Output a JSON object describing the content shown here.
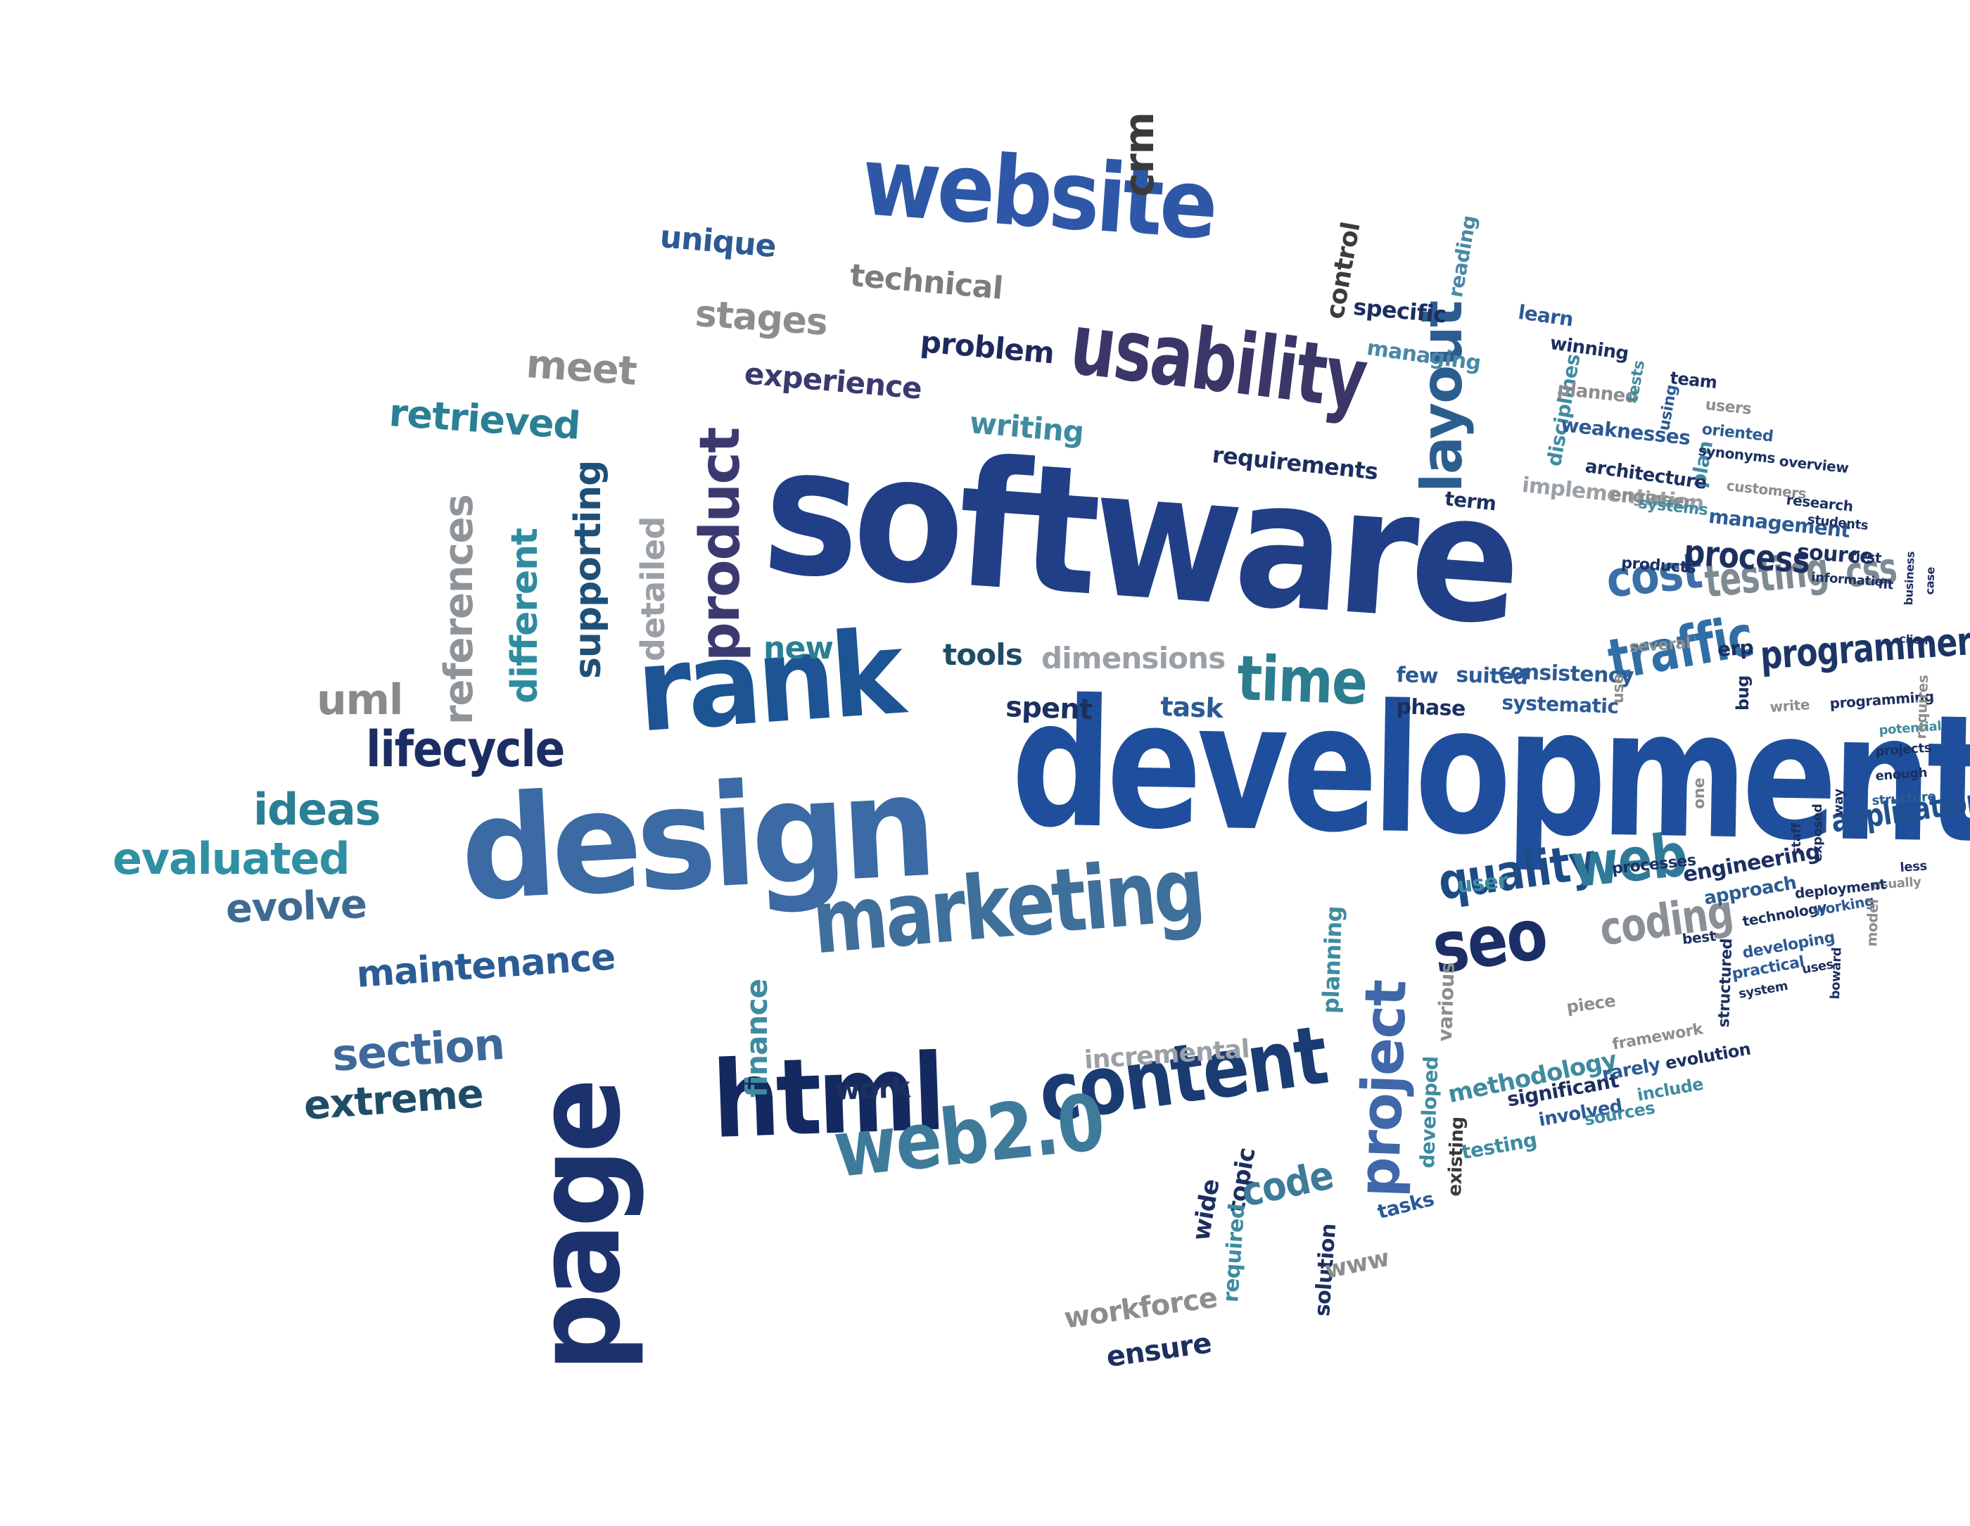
{
  "word_cloud": {
    "words": [
      {
        "text": "software",
        "color": "#213f86"
      },
      {
        "text": "development",
        "color": "#1f4f9c"
      },
      {
        "text": "design",
        "color": "#3b6aa5"
      },
      {
        "text": "rank",
        "color": "#1d5493"
      },
      {
        "text": "page",
        "color": "#1c326d"
      },
      {
        "text": "html",
        "color": "#14295f"
      },
      {
        "text": "content",
        "color": "#1a3c73"
      },
      {
        "text": "marketing",
        "color": "#3f6f9b"
      },
      {
        "text": "website",
        "color": "#2e58a7"
      },
      {
        "text": "usability",
        "color": "#3a3668"
      },
      {
        "text": "layout",
        "color": "#2b5e8f"
      },
      {
        "text": "product",
        "color": "#3b3a70"
      },
      {
        "text": "web2.0",
        "color": "#3e7a9a"
      },
      {
        "text": "project",
        "color": "#3f67a9"
      },
      {
        "text": "seo",
        "color": "#1b2f66"
      },
      {
        "text": "quality",
        "color": "#1d4b86"
      },
      {
        "text": "web",
        "color": "#2f7a98"
      },
      {
        "text": "time",
        "color": "#2b7d8f"
      },
      {
        "text": "traffic",
        "color": "#2f6fa5"
      },
      {
        "text": "cost",
        "color": "#3a6fa8"
      },
      {
        "text": "testing",
        "color": "#7f8b93"
      },
      {
        "text": "css",
        "color": "#7f8b93"
      },
      {
        "text": "programmer",
        "color": "#1c3566"
      },
      {
        "text": "application",
        "color": "#1f4f8f"
      },
      {
        "text": "coding",
        "color": "#8a9096"
      },
      {
        "text": "lifecycle",
        "color": "#1c2d63"
      },
      {
        "text": "ideas",
        "color": "#2a7f95"
      },
      {
        "text": "evaluated",
        "color": "#2f8fa3"
      },
      {
        "text": "evolve",
        "color": "#3e6a92"
      },
      {
        "text": "maintenance",
        "color": "#2c5c95"
      },
      {
        "text": "section",
        "color": "#3d6a9b"
      },
      {
        "text": "extreme",
        "color": "#1f4c66"
      },
      {
        "text": "uml",
        "color": "#8a8a8a"
      },
      {
        "text": "references",
        "color": "#8f9499"
      },
      {
        "text": "different",
        "color": "#2f8ca0"
      },
      {
        "text": "supporting",
        "color": "#1f5077"
      },
      {
        "text": "detailed",
        "color": "#9aa0a6"
      },
      {
        "text": "retrieved",
        "color": "#2a7f95"
      },
      {
        "text": "meet",
        "color": "#8d8d8d"
      },
      {
        "text": "stages",
        "color": "#8d8d8d"
      },
      {
        "text": "technical",
        "color": "#7d7d7d"
      },
      {
        "text": "unique",
        "color": "#2c5a95"
      },
      {
        "text": "experience",
        "color": "#3a3a70"
      },
      {
        "text": "problem",
        "color": "#1e2a5e"
      },
      {
        "text": "writing",
        "color": "#3f8ba0"
      },
      {
        "text": "crm",
        "color": "#3a3a3a"
      },
      {
        "text": "control",
        "color": "#3c3c3c"
      },
      {
        "text": "specific",
        "color": "#1c2f60"
      },
      {
        "text": "managing",
        "color": "#4a88a8"
      },
      {
        "text": "reading",
        "color": "#4a88a8"
      },
      {
        "text": "requirements",
        "color": "#1c2f60"
      },
      {
        "text": "term",
        "color": "#1c2f60"
      },
      {
        "text": "new",
        "color": "#2a7f95"
      },
      {
        "text": "tools",
        "color": "#1f4c66"
      },
      {
        "text": "dimensions",
        "color": "#9aa0a6"
      },
      {
        "text": "spent",
        "color": "#1c2f60"
      },
      {
        "text": "task",
        "color": "#2c5a95"
      },
      {
        "text": "finance",
        "color": "#3f8ba0"
      },
      {
        "text": "work",
        "color": "#1c2f60"
      },
      {
        "text": "incremental",
        "color": "#9aa0a6"
      },
      {
        "text": "planning",
        "color": "#3f8ba0"
      },
      {
        "text": "wide",
        "color": "#1c2f60"
      },
      {
        "text": "topic",
        "color": "#1c2f60"
      },
      {
        "text": "required",
        "color": "#3f8ba0"
      },
      {
        "text": "code",
        "color": "#3e7a9a"
      },
      {
        "text": "solution",
        "color": "#1c2f60"
      },
      {
        "text": "www",
        "color": "#8d8d8d"
      },
      {
        "text": "workforce",
        "color": "#8d8d8d"
      },
      {
        "text": "ensure",
        "color": "#1c2f60"
      },
      {
        "text": "tasks",
        "color": "#2c5a95"
      },
      {
        "text": "developed",
        "color": "#3f8ba0"
      },
      {
        "text": "various",
        "color": "#8d8d8d"
      },
      {
        "text": "existing",
        "color": "#3a3a3a"
      },
      {
        "text": "testing",
        "color": "#3f8ba0"
      },
      {
        "text": "involved",
        "color": "#2c5a95"
      },
      {
        "text": "methodology",
        "color": "#3f8ba0"
      },
      {
        "text": "significant",
        "color": "#1c2f60"
      },
      {
        "text": "rarely",
        "color": "#2c5a95"
      },
      {
        "text": "evolution",
        "color": "#1c2f60"
      },
      {
        "text": "include",
        "color": "#3f8ba0"
      },
      {
        "text": "sources",
        "color": "#3f8ba0"
      },
      {
        "text": "framework",
        "color": "#8d8d8d"
      },
      {
        "text": "piece",
        "color": "#8d8d8d"
      },
      {
        "text": "user",
        "color": "#3f8ba0"
      },
      {
        "text": "few",
        "color": "#2c5a95"
      },
      {
        "text": "suited",
        "color": "#2c5a95"
      },
      {
        "text": "phase",
        "color": "#1c2f60"
      },
      {
        "text": "consistency",
        "color": "#2c5a95"
      },
      {
        "text": "systematic",
        "color": "#2c5a95"
      },
      {
        "text": "use",
        "color": "#8d8d8d"
      },
      {
        "text": "several",
        "color": "#8d8d8d"
      },
      {
        "text": "erp",
        "color": "#1c2f60"
      },
      {
        "text": "bug",
        "color": "#1c2f60"
      },
      {
        "text": "write",
        "color": "#8d8d8d"
      },
      {
        "text": "programming",
        "color": "#1c2f60"
      },
      {
        "text": "potential",
        "color": "#3f8ba0"
      },
      {
        "text": "projects",
        "color": "#1c2f60"
      },
      {
        "text": "enough",
        "color": "#1c2f60"
      },
      {
        "text": "requires",
        "color": "#8d8d8d"
      },
      {
        "text": "structure",
        "color": "#2c5a95"
      },
      {
        "text": "one",
        "color": "#8d8d8d"
      },
      {
        "text": "exposed",
        "color": "#1c2f60"
      },
      {
        "text": "way",
        "color": "#1c2f60"
      },
      {
        "text": "staff",
        "color": "#1c2f60"
      },
      {
        "text": "less",
        "color": "#1c2f60"
      },
      {
        "text": "usually",
        "color": "#8d8d8d"
      },
      {
        "text": "deployment",
        "color": "#1c2f60"
      },
      {
        "text": "processes",
        "color": "#1c2f60"
      },
      {
        "text": "engineering",
        "color": "#1c2f60"
      },
      {
        "text": "approach",
        "color": "#2c5a95"
      },
      {
        "text": "technology",
        "color": "#1c2f60"
      },
      {
        "text": "working",
        "color": "#2c5a95"
      },
      {
        "text": "model",
        "color": "#8d8d8d"
      },
      {
        "text": "best",
        "color": "#1c2f60"
      },
      {
        "text": "structured",
        "color": "#1c2f60"
      },
      {
        "text": "developing",
        "color": "#2c5a95"
      },
      {
        "text": "practical",
        "color": "#2c5a95"
      },
      {
        "text": "uses",
        "color": "#1c2f60"
      },
      {
        "text": "system",
        "color": "#1c2f60"
      },
      {
        "text": "boward",
        "color": "#1c2f60"
      },
      {
        "text": "learn",
        "color": "#2c5a95"
      },
      {
        "text": "winning",
        "color": "#1c2f60"
      },
      {
        "text": "disciplines",
        "color": "#3f8ba0"
      },
      {
        "text": "planned",
        "color": "#8d8d8d"
      },
      {
        "text": "tests",
        "color": "#3f8ba0"
      },
      {
        "text": "using",
        "color": "#2c5a95"
      },
      {
        "text": "team",
        "color": "#1c2f60"
      },
      {
        "text": "users",
        "color": "#8d8d8d"
      },
      {
        "text": "weaknesses",
        "color": "#2c5a95"
      },
      {
        "text": "plan",
        "color": "#3f8ba0"
      },
      {
        "text": "oriented",
        "color": "#2c5a95"
      },
      {
        "text": "synonyms",
        "color": "#1c2f60"
      },
      {
        "text": "overview",
        "color": "#1c2f60"
      },
      {
        "text": "implementation",
        "color": "#9aa0a6"
      },
      {
        "text": "architecture",
        "color": "#1c2f60"
      },
      {
        "text": "customers",
        "color": "#8d8d8d"
      },
      {
        "text": "research",
        "color": "#1c2f60"
      },
      {
        "text": "engineer",
        "color": "#8d8d8d"
      },
      {
        "text": "systems",
        "color": "#3f8ba0"
      },
      {
        "text": "management",
        "color": "#2c5a95"
      },
      {
        "text": "students",
        "color": "#1c2f60"
      },
      {
        "text": "process",
        "color": "#1c2f60"
      },
      {
        "text": "source",
        "color": "#1c2f60"
      },
      {
        "text": "first",
        "color": "#1c2f60"
      },
      {
        "text": "products",
        "color": "#1c2f60"
      },
      {
        "text": "information",
        "color": "#1c2f60"
      },
      {
        "text": "fit",
        "color": "#1c2f60"
      },
      {
        "text": "business",
        "color": "#1c2f60"
      },
      {
        "text": "case",
        "color": "#1c2f60"
      },
      {
        "text": "client",
        "color": "#1c2f60"
      }
    ]
  }
}
